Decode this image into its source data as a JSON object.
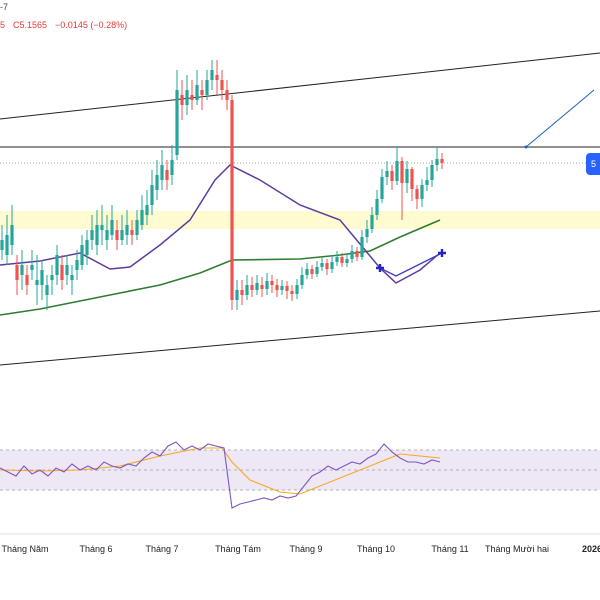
{
  "header": {
    "top_fragment": "-7",
    "close_fragment": "5",
    "close_label": "C5.1565",
    "change": "−0.0145 (−0.28%)"
  },
  "badge": {
    "text": "5"
  },
  "x_axis": {
    "labels": [
      "Tháng Năm",
      "Tháng 6",
      "Tháng 7",
      "Tháng Tám",
      "Tháng 9",
      "Tháng 10",
      "Tháng 11",
      "Tháng Mười hai",
      "2026"
    ]
  },
  "colors": {
    "up": "#26a69a",
    "down": "#ef5350",
    "ma_purple": "#5c3c9e",
    "ma_green": "#2e7d32",
    "zone_yellow": "#fffbd0",
    "rsi_band": "#ede7f6",
    "rsi_line": "#7e57c2",
    "rsi_ma": "#f9a825",
    "trendline": "#1565c0"
  },
  "chart_data": {
    "type": "candlestick",
    "candles": [
      [
        2,
        14.5,
        15.5,
        17,
        13.5
      ],
      [
        7,
        14,
        16,
        18,
        13
      ],
      [
        12,
        15,
        17,
        19,
        14
      ],
      [
        17,
        13,
        11.5,
        14,
        10
      ],
      [
        22,
        12,
        13,
        14.5,
        10.5
      ],
      [
        27,
        12,
        11,
        13,
        10
      ],
      [
        32,
        12.5,
        13,
        14.5,
        11.5
      ],
      [
        37,
        11,
        11.5,
        14,
        9
      ],
      [
        42,
        11,
        12.5,
        13.5,
        9.5
      ],
      [
        47,
        10,
        11,
        12,
        8.5
      ],
      [
        52,
        11.5,
        12,
        13,
        10
      ],
      [
        57,
        12,
        14,
        15,
        11
      ],
      [
        62,
        13,
        11.5,
        14,
        10.5
      ],
      [
        67,
        12,
        13,
        14,
        11
      ],
      [
        72,
        11.5,
        12,
        13,
        10
      ],
      [
        77,
        12.5,
        13.5,
        14.5,
        11.5
      ],
      [
        82,
        13,
        15,
        16,
        12.5
      ],
      [
        87,
        14,
        15.5,
        16.5,
        13
      ],
      [
        92,
        15.5,
        16.5,
        18,
        14.5
      ],
      [
        97,
        15,
        17,
        18.5,
        14
      ],
      [
        102,
        16.5,
        17,
        19,
        15
      ],
      [
        107,
        15.5,
        16.5,
        18,
        14.5
      ],
      [
        112,
        16,
        17.5,
        19,
        15.5
      ],
      [
        117,
        16.5,
        15.5,
        17.5,
        14.5
      ],
      [
        122,
        15.5,
        16.5,
        18,
        15
      ],
      [
        127,
        16,
        17,
        18.5,
        15
      ],
      [
        132,
        16.5,
        16,
        17.5,
        15
      ],
      [
        137,
        16,
        17.5,
        18.5,
        15.5
      ],
      [
        142,
        17,
        18.5,
        20,
        16.5
      ],
      [
        147,
        18,
        19,
        20.5,
        17
      ],
      [
        152,
        19,
        21,
        22.5,
        18
      ],
      [
        157,
        20.5,
        22,
        23.5,
        19.5
      ],
      [
        162,
        21.5,
        23,
        24.5,
        20.5
      ],
      [
        167,
        22.5,
        21.5,
        23.5,
        20.5
      ],
      [
        172,
        22,
        23.5,
        25,
        21
      ],
      [
        177,
        24,
        30.5,
        32.5,
        23.5
      ],
      [
        182,
        30,
        29,
        31.5,
        27.5
      ],
      [
        187,
        29,
        30.5,
        32,
        28
      ],
      [
        192,
        30,
        29.5,
        31.5,
        28.5
      ],
      [
        197,
        29.5,
        31,
        32.5,
        29
      ],
      [
        202,
        30.5,
        30,
        31.5,
        28.5
      ],
      [
        207,
        30,
        31.5,
        32.5,
        29.5
      ],
      [
        212,
        31.5,
        32.5,
        33.5,
        30.5
      ],
      [
        217,
        32,
        31.5,
        33.5,
        30
      ],
      [
        222,
        31.5,
        30.5,
        32.5,
        29.5
      ],
      [
        227,
        30.5,
        29.5,
        31.5,
        28.5
      ],
      [
        232,
        29.5,
        9.5,
        30,
        8.5
      ],
      [
        237,
        9.5,
        10.5,
        11.5,
        8.5
      ],
      [
        242,
        10.5,
        10,
        11.5,
        9
      ],
      [
        247,
        10,
        11,
        12,
        9.5
      ],
      [
        252,
        11,
        10.5,
        11.8,
        9.8
      ],
      [
        257,
        10.5,
        11.2,
        12,
        10
      ],
      [
        262,
        11,
        10.6,
        11.8,
        9.8
      ],
      [
        267,
        10.6,
        11.4,
        12.2,
        10
      ],
      [
        272,
        11.4,
        11,
        12,
        10.2
      ],
      [
        277,
        11,
        10.5,
        11.6,
        9.8
      ],
      [
        282,
        10.5,
        10.9,
        11.5,
        10
      ],
      [
        287,
        10.9,
        10.4,
        11.4,
        9.6
      ],
      [
        292,
        10.4,
        10.1,
        11,
        9.4
      ],
      [
        297,
        10.1,
        11,
        11.6,
        9.6
      ],
      [
        302,
        11,
        12,
        12.8,
        10.6
      ],
      [
        307,
        12,
        12.6,
        13.2,
        11.6
      ],
      [
        312,
        12.6,
        12.1,
        13,
        11.6
      ],
      [
        317,
        12.1,
        12.8,
        13.4,
        11.8
      ],
      [
        322,
        12.8,
        13.2,
        13.8,
        12.4
      ],
      [
        327,
        13.2,
        12.6,
        13.6,
        12
      ],
      [
        332,
        12.6,
        13.3,
        14,
        12.2
      ],
      [
        337,
        13.3,
        13.8,
        14.4,
        12.9
      ],
      [
        342,
        13.8,
        13.2,
        14.2,
        12.8
      ],
      [
        347,
        13.2,
        13.6,
        14.2,
        12.8
      ],
      [
        352,
        13.6,
        14.4,
        15,
        13.2
      ],
      [
        357,
        14.4,
        13.8,
        14.8,
        13.4
      ],
      [
        362,
        13.8,
        15.8,
        16.5,
        13.5
      ],
      [
        367,
        15.8,
        16.6,
        17.5,
        15.2
      ],
      [
        372,
        16.6,
        18,
        18.8,
        16.2
      ],
      [
        377,
        18,
        19.6,
        20.5,
        17.5
      ],
      [
        382,
        19.6,
        21.8,
        22.6,
        19.2
      ],
      [
        387,
        21.8,
        22.4,
        23.4,
        21
      ],
      [
        392,
        22.4,
        21.4,
        23,
        20.5
      ],
      [
        397,
        21.4,
        23.4,
        24.8,
        21
      ],
      [
        402,
        23.4,
        21.2,
        23.8,
        17.5
      ],
      [
        407,
        21.2,
        22.6,
        23.4,
        20.2
      ],
      [
        412,
        22.6,
        20.6,
        22.8,
        19.4
      ],
      [
        417,
        20.6,
        19.6,
        21,
        18.6
      ],
      [
        422,
        19.6,
        21,
        21.6,
        18.8
      ],
      [
        427,
        21,
        21.5,
        22.8,
        20.4
      ],
      [
        432,
        21.5,
        23,
        23.5,
        20.8
      ],
      [
        437,
        23,
        23.6,
        24.8,
        22.4
      ],
      [
        442,
        23.6,
        23.2,
        24.2,
        22.6
      ]
    ],
    "ma_purple": [
      [
        0,
        13
      ],
      [
        40,
        13.4
      ],
      [
        80,
        14.2
      ],
      [
        110,
        12.6
      ],
      [
        130,
        12.8
      ],
      [
        160,
        15
      ],
      [
        190,
        17.5
      ],
      [
        215,
        21.5
      ],
      [
        230,
        23
      ],
      [
        260,
        21.5
      ],
      [
        300,
        19
      ],
      [
        340,
        17.5
      ],
      [
        365,
        14.5
      ],
      [
        380,
        12.7
      ],
      [
        396,
        11.2
      ],
      [
        420,
        12.5
      ],
      [
        440,
        14.2
      ]
    ],
    "ma_green": [
      [
        0,
        8
      ],
      [
        40,
        8.6
      ],
      [
        80,
        9.4
      ],
      [
        120,
        10.2
      ],
      [
        160,
        11
      ],
      [
        200,
        12.2
      ],
      [
        232,
        13.5
      ],
      [
        300,
        13.6
      ],
      [
        340,
        14
      ],
      [
        370,
        14.4
      ],
      [
        400,
        15.8
      ],
      [
        440,
        17.5
      ]
    ],
    "channel_upper": [
      [
        0,
        27.6
      ],
      [
        600,
        34.2
      ]
    ],
    "channel_lower": [
      [
        0,
        3
      ],
      [
        600,
        8.4
      ]
    ],
    "h_line": 24.8,
    "dotted_line": 23.2,
    "zone": [
      16.6,
      18.4
    ],
    "ray": [
      [
        526,
        24.8
      ],
      [
        594,
        30.5
      ]
    ],
    "markers": [
      [
        380,
        12.7
      ],
      [
        442,
        14.2
      ]
    ],
    "rsi": {
      "band": [
        30,
        70
      ],
      "ref_levels": [
        30,
        50,
        70
      ],
      "line": [
        [
          0,
          52
        ],
        [
          8,
          48
        ],
        [
          16,
          44
        ],
        [
          24,
          54
        ],
        [
          32,
          46
        ],
        [
          40,
          50
        ],
        [
          48,
          44
        ],
        [
          56,
          52
        ],
        [
          64,
          48
        ],
        [
          72,
          56
        ],
        [
          80,
          50
        ],
        [
          88,
          54
        ],
        [
          96,
          50
        ],
        [
          104,
          58
        ],
        [
          112,
          54
        ],
        [
          120,
          52
        ],
        [
          128,
          56
        ],
        [
          136,
          54
        ],
        [
          144,
          62
        ],
        [
          152,
          68
        ],
        [
          160,
          64
        ],
        [
          168,
          74
        ],
        [
          176,
          78
        ],
        [
          184,
          70
        ],
        [
          192,
          74
        ],
        [
          200,
          70
        ],
        [
          208,
          76
        ],
        [
          216,
          74
        ],
        [
          224,
          72
        ],
        [
          232,
          12
        ],
        [
          240,
          16
        ],
        [
          248,
          18
        ],
        [
          256,
          20
        ],
        [
          264,
          22
        ],
        [
          272,
          20
        ],
        [
          280,
          24
        ],
        [
          288,
          22
        ],
        [
          296,
          24
        ],
        [
          304,
          34
        ],
        [
          312,
          44
        ],
        [
          320,
          48
        ],
        [
          328,
          54
        ],
        [
          336,
          50
        ],
        [
          344,
          54
        ],
        [
          352,
          58
        ],
        [
          360,
          56
        ],
        [
          368,
          62
        ],
        [
          376,
          66
        ],
        [
          384,
          76
        ],
        [
          392,
          68
        ],
        [
          400,
          62
        ],
        [
          408,
          58
        ],
        [
          416,
          58
        ],
        [
          424,
          56
        ],
        [
          432,
          60
        ],
        [
          440,
          58
        ]
      ],
      "ma": [
        [
          0,
          50
        ],
        [
          40,
          49
        ],
        [
          80,
          50
        ],
        [
          120,
          54
        ],
        [
          160,
          64
        ],
        [
          200,
          72
        ],
        [
          222,
          72
        ],
        [
          232,
          58
        ],
        [
          250,
          40
        ],
        [
          280,
          28
        ],
        [
          300,
          26
        ],
        [
          320,
          34
        ],
        [
          340,
          42
        ],
        [
          360,
          50
        ],
        [
          380,
          58
        ],
        [
          400,
          66
        ],
        [
          420,
          64
        ],
        [
          440,
          62
        ]
      ]
    }
  }
}
